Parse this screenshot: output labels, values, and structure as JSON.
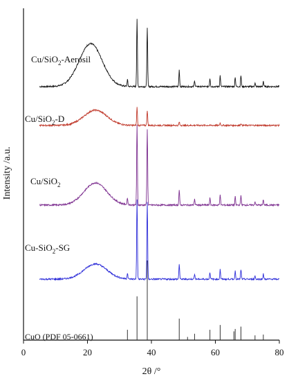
{
  "chart_data": {
    "type": "line",
    "xlabel": "2θ /°",
    "ylabel": "Intensity /a.u.",
    "xlim": [
      0,
      80
    ],
    "xticks": [
      0,
      20,
      40,
      60,
      80
    ],
    "y_ticks_shown": false,
    "grid": false,
    "legend": "none (series labeled directly above traces)",
    "series": [
      {
        "name": "Cu/SiO2-Aerosil",
        "color": "#111111",
        "broad_hump": {
          "center": 21,
          "width": 3.6,
          "height": 62
        },
        "peaks": [
          [
            32.5,
            10
          ],
          [
            35.5,
            98
          ],
          [
            38.7,
            86
          ],
          [
            48.7,
            24
          ],
          [
            53.5,
            9
          ],
          [
            58.3,
            12
          ],
          [
            61.5,
            16
          ],
          [
            66.2,
            14
          ],
          [
            68.0,
            16
          ],
          [
            72.4,
            5
          ],
          [
            75.0,
            8
          ]
        ],
        "baseline_offset": 366
      },
      {
        "name": "Cu/SiO2-D",
        "color": "#c0392b",
        "broad_hump": {
          "center": 22.5,
          "width": 3.6,
          "height": 22
        },
        "peaks": [
          [
            35.5,
            26
          ],
          [
            38.7,
            22
          ],
          [
            48.7,
            5
          ],
          [
            61.5,
            4
          ],
          [
            68.0,
            3
          ]
        ],
        "baseline_offset": 310
      },
      {
        "name": "Cu/SiO2",
        "color": "#7b2c8e",
        "broad_hump": {
          "center": 22.5,
          "width": 3.6,
          "height": 32
        },
        "peaks": [
          [
            32.5,
            10
          ],
          [
            35.5,
            115
          ],
          [
            38.7,
            110
          ],
          [
            48.7,
            22
          ],
          [
            53.5,
            9
          ],
          [
            58.3,
            10
          ],
          [
            61.5,
            16
          ],
          [
            66.2,
            12
          ],
          [
            68.0,
            14
          ],
          [
            72.4,
            5
          ],
          [
            75.0,
            8
          ]
        ],
        "baseline_offset": 195
      },
      {
        "name": "Cu-SiO2-SG",
        "color": "#2b2bd8",
        "broad_hump": {
          "center": 22.5,
          "width": 3.6,
          "height": 22
        },
        "peaks": [
          [
            32.5,
            9
          ],
          [
            35.5,
            115
          ],
          [
            38.7,
            112
          ],
          [
            48.7,
            22
          ],
          [
            53.5,
            8
          ],
          [
            58.3,
            10
          ],
          [
            61.5,
            14
          ],
          [
            66.2,
            12
          ],
          [
            68.0,
            14
          ],
          [
            72.4,
            5
          ],
          [
            75.0,
            8
          ]
        ],
        "baseline_offset": 88
      }
    ],
    "reference": {
      "name": "CuO (PDF 05-0661)",
      "sticks": [
        [
          32.5,
          13
        ],
        [
          35.5,
          55
        ],
        [
          38.7,
          100
        ],
        [
          48.7,
          27
        ],
        [
          51.3,
          4
        ],
        [
          53.5,
          8
        ],
        [
          58.3,
          13
        ],
        [
          61.5,
          19
        ],
        [
          65.8,
          11
        ],
        [
          66.2,
          14
        ],
        [
          68.0,
          17
        ],
        [
          72.4,
          6
        ],
        [
          75.0,
          7
        ]
      ]
    }
  },
  "labels": {
    "series_1": {
      "pre": "Cu/SiO",
      "sub": "2",
      "post": "-Aerosil"
    },
    "series_2": {
      "pre": "Cu/SiO",
      "sub": "2",
      "post": "-D"
    },
    "series_3": {
      "pre": "Cu/SiO",
      "sub": "2",
      "post": ""
    },
    "series_4": {
      "pre": "Cu-SiO",
      "sub": "2",
      "post": "-SG"
    },
    "reference": "CuO (PDF 05-0661)"
  }
}
